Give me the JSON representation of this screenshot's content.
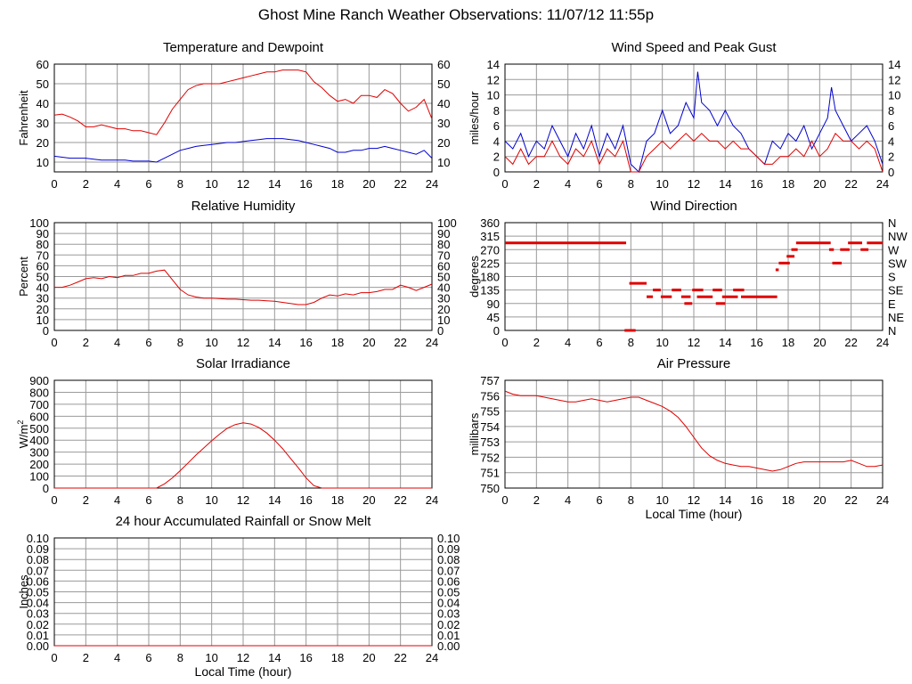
{
  "page": {
    "title": "Ghost Mine Ranch Weather Observations: 11/07/12 11:55p"
  },
  "chart_data": [
    {
      "id": "temp",
      "type": "line",
      "title": "Temperature and Dewpoint",
      "ylabel": "Fahrenheit",
      "xlabel": "",
      "xlim": [
        0,
        24
      ],
      "ylim": [
        5,
        60
      ],
      "xticks": [
        0,
        2,
        4,
        6,
        8,
        10,
        12,
        14,
        16,
        18,
        20,
        22,
        24
      ],
      "yticks": [
        10,
        20,
        30,
        40,
        50,
        60
      ],
      "right_axis": true,
      "grid": true,
      "series": [
        {
          "color": "#e00000",
          "x": [
            0,
            0.5,
            1,
            1.5,
            2,
            2.5,
            3,
            3.5,
            4,
            4.5,
            5,
            5.5,
            6,
            6.5,
            7,
            7.5,
            8,
            8.5,
            9,
            9.5,
            10,
            10.5,
            11,
            11.5,
            12,
            12.5,
            13,
            13.5,
            14,
            14.5,
            15,
            15.5,
            16,
            16.5,
            17,
            17.5,
            18,
            18.5,
            19,
            19.5,
            20,
            20.5,
            21,
            21.5,
            22,
            22.5,
            23,
            23.5,
            24
          ],
          "values": [
            34,
            34.5,
            33,
            31,
            28,
            28,
            29,
            28,
            27,
            27,
            26,
            26,
            25,
            24,
            30,
            37,
            42,
            47,
            49,
            50,
            50,
            50,
            51,
            52,
            53,
            54,
            55,
            56,
            56,
            57,
            57,
            57,
            56,
            51,
            48,
            44,
            41,
            42,
            40,
            44,
            44,
            43,
            47,
            45,
            40,
            36,
            38,
            42,
            32
          ]
        },
        {
          "color": "#0000d0",
          "x": [
            0,
            0.5,
            1,
            1.5,
            2,
            2.5,
            3,
            3.5,
            4,
            4.5,
            5,
            5.5,
            6,
            6.5,
            7,
            7.5,
            8,
            8.5,
            9,
            9.5,
            10,
            10.5,
            11,
            11.5,
            12,
            12.5,
            13,
            13.5,
            14,
            14.5,
            15,
            15.5,
            16,
            16.5,
            17,
            17.5,
            18,
            18.5,
            19,
            19.5,
            20,
            20.5,
            21,
            21.5,
            22,
            22.5,
            23,
            23.5,
            24
          ],
          "values": [
            13,
            12.5,
            12,
            12,
            12,
            11.5,
            11,
            11,
            11,
            11,
            10.5,
            10.5,
            10.5,
            10,
            12,
            14,
            16,
            17,
            18,
            18.5,
            19,
            19.5,
            20,
            20,
            20.5,
            21,
            21.5,
            22,
            22,
            22,
            21.5,
            21,
            20,
            19,
            18,
            17,
            15,
            15,
            16,
            16,
            17,
            17,
            18,
            17,
            16,
            15,
            14,
            16,
            12
          ]
        }
      ]
    },
    {
      "id": "wind",
      "type": "line",
      "title": "Wind Speed and Peak Gust",
      "ylabel": "miles/hour",
      "xlabel": "",
      "xlim": [
        0,
        24
      ],
      "ylim": [
        0,
        14
      ],
      "xticks": [
        0,
        2,
        4,
        6,
        8,
        10,
        12,
        14,
        16,
        18,
        20,
        22,
        24
      ],
      "yticks": [
        0,
        2,
        4,
        6,
        8,
        10,
        12,
        14
      ],
      "right_axis": true,
      "grid": true,
      "series": [
        {
          "color": "#0000d0",
          "x": [
            0,
            0.5,
            1,
            1.5,
            2,
            2.5,
            3,
            3.5,
            4,
            4.5,
            5,
            5.5,
            6,
            6.5,
            7,
            7.5,
            8,
            8.5,
            9,
            9.5,
            10,
            10.5,
            11,
            11.5,
            12,
            12.25,
            12.5,
            13,
            13.5,
            14,
            14.5,
            15,
            15.5,
            16,
            16.5,
            17,
            17.5,
            18,
            18.5,
            19,
            19.5,
            20,
            20.5,
            20.75,
            21,
            21.5,
            22,
            22.5,
            23,
            23.5,
            24
          ],
          "values": [
            4,
            3,
            5,
            2,
            4,
            3,
            6,
            4,
            2,
            5,
            3,
            6,
            2,
            5,
            3,
            6,
            1,
            0,
            4,
            5,
            8,
            5,
            6,
            9,
            7,
            13,
            9,
            8,
            6,
            8,
            6,
            5,
            3,
            2,
            1,
            4,
            3,
            5,
            4,
            6,
            3,
            5,
            7,
            11,
            8,
            6,
            4,
            5,
            6,
            4,
            1
          ]
        },
        {
          "color": "#e00000",
          "x": [
            0,
            0.5,
            1,
            1.5,
            2,
            2.5,
            3,
            3.5,
            4,
            4.5,
            5,
            5.5,
            6,
            6.5,
            7,
            7.5,
            8,
            8.5,
            9,
            9.5,
            10,
            10.5,
            11,
            11.5,
            12,
            12.5,
            13,
            13.5,
            14,
            14.5,
            15,
            15.5,
            16,
            16.5,
            17,
            17.5,
            18,
            18.5,
            19,
            19.5,
            20,
            20.5,
            21,
            21.5,
            22,
            22.5,
            23,
            23.5,
            24
          ],
          "values": [
            2,
            1,
            3,
            1,
            2,
            2,
            4,
            2,
            1,
            3,
            2,
            4,
            1,
            3,
            2,
            4,
            0,
            0,
            2,
            3,
            4,
            3,
            4,
            5,
            4,
            5,
            4,
            4,
            3,
            4,
            3,
            3,
            2,
            1,
            1,
            2,
            2,
            3,
            2,
            4,
            2,
            3,
            5,
            4,
            4,
            3,
            4,
            3,
            0
          ]
        }
      ]
    },
    {
      "id": "humidity",
      "type": "line",
      "title": "Relative Humidity",
      "ylabel": "Percent",
      "xlabel": "",
      "xlim": [
        0,
        24
      ],
      "ylim": [
        0,
        100
      ],
      "xticks": [
        0,
        2,
        4,
        6,
        8,
        10,
        12,
        14,
        16,
        18,
        20,
        22,
        24
      ],
      "yticks": [
        0,
        10,
        20,
        30,
        40,
        50,
        60,
        70,
        80,
        90,
        100
      ],
      "right_axis": true,
      "grid": true,
      "series": [
        {
          "color": "#e00000",
          "x": [
            0,
            0.5,
            1,
            1.5,
            2,
            2.5,
            3,
            3.5,
            4,
            4.5,
            5,
            5.5,
            6,
            6.5,
            7,
            7.5,
            8,
            8.5,
            9,
            9.5,
            10,
            10.5,
            11,
            11.5,
            12,
            12.5,
            13,
            13.5,
            14,
            14.5,
            15,
            15.5,
            16,
            16.5,
            17,
            17.5,
            18,
            18.5,
            19,
            19.5,
            20,
            20.5,
            21,
            21.5,
            22,
            22.5,
            23,
            23.5,
            24
          ],
          "values": [
            40,
            40,
            42,
            45,
            48,
            49,
            48,
            50,
            49,
            51,
            51,
            53,
            53,
            55,
            56,
            47,
            38,
            33,
            31,
            30,
            30,
            29.5,
            29,
            29,
            28.5,
            28,
            28,
            27.5,
            27,
            26,
            25,
            24,
            24,
            26,
            30,
            33,
            32,
            34,
            33,
            35,
            35,
            36,
            38,
            38,
            42,
            40,
            37,
            40,
            43
          ]
        }
      ]
    },
    {
      "id": "winddir",
      "type": "scatter",
      "title": "Wind Direction",
      "ylabel": "degrees",
      "xlabel": "",
      "xlim": [
        0,
        24
      ],
      "ylim": [
        0,
        360
      ],
      "xticks": [
        0,
        2,
        4,
        6,
        8,
        10,
        12,
        14,
        16,
        18,
        20,
        22,
        24
      ],
      "yticks": [
        0,
        45,
        90,
        135,
        180,
        225,
        270,
        315,
        360
      ],
      "right_labels": [
        "N",
        "NE",
        "E",
        "SE",
        "S",
        "SW",
        "W",
        "NW",
        "N"
      ],
      "grid": true,
      "segments": [
        {
          "color": "#e00000",
          "from": 0.0,
          "to": 7.7,
          "y": 292.5
        },
        {
          "color": "#e00000",
          "from": 7.6,
          "to": 8.3,
          "y": 0
        },
        {
          "color": "#e00000",
          "from": 7.9,
          "to": 9.0,
          "y": 157.5
        },
        {
          "color": "#e00000",
          "from": 9.0,
          "to": 9.4,
          "y": 112.5
        },
        {
          "color": "#e00000",
          "from": 9.4,
          "to": 9.9,
          "y": 135
        },
        {
          "color": "#e00000",
          "from": 9.9,
          "to": 10.6,
          "y": 112.5
        },
        {
          "color": "#e00000",
          "from": 10.6,
          "to": 11.2,
          "y": 135
        },
        {
          "color": "#e00000",
          "from": 11.2,
          "to": 11.8,
          "y": 112.5
        },
        {
          "color": "#e00000",
          "from": 11.4,
          "to": 11.9,
          "y": 90
        },
        {
          "color": "#e00000",
          "from": 11.9,
          "to": 12.6,
          "y": 135
        },
        {
          "color": "#e00000",
          "from": 12.2,
          "to": 13.2,
          "y": 112.5
        },
        {
          "color": "#e00000",
          "from": 13.2,
          "to": 13.8,
          "y": 135
        },
        {
          "color": "#e00000",
          "from": 13.4,
          "to": 14.0,
          "y": 90
        },
        {
          "color": "#e00000",
          "from": 13.8,
          "to": 14.8,
          "y": 112.5
        },
        {
          "color": "#e00000",
          "from": 14.5,
          "to": 15.2,
          "y": 135
        },
        {
          "color": "#e00000",
          "from": 15.0,
          "to": 17.3,
          "y": 112.5
        },
        {
          "color": "#e00000",
          "from": 17.2,
          "to": 17.4,
          "y": 202.5
        },
        {
          "color": "#e00000",
          "from": 17.4,
          "to": 18.1,
          "y": 225
        },
        {
          "color": "#e00000",
          "from": 17.9,
          "to": 18.4,
          "y": 247.5
        },
        {
          "color": "#e00000",
          "from": 18.2,
          "to": 18.6,
          "y": 270
        },
        {
          "color": "#e00000",
          "from": 18.5,
          "to": 20.7,
          "y": 292.5
        },
        {
          "color": "#e00000",
          "from": 20.6,
          "to": 20.9,
          "y": 270
        },
        {
          "color": "#e00000",
          "from": 20.8,
          "to": 21.4,
          "y": 225
        },
        {
          "color": "#e00000",
          "from": 21.3,
          "to": 21.9,
          "y": 270
        },
        {
          "color": "#e00000",
          "from": 21.8,
          "to": 22.7,
          "y": 292.5
        },
        {
          "color": "#e00000",
          "from": 22.6,
          "to": 23.1,
          "y": 270
        },
        {
          "color": "#e00000",
          "from": 23.0,
          "to": 24.0,
          "y": 292.5
        }
      ]
    },
    {
      "id": "solar",
      "type": "line",
      "title": "Solar Irradiance",
      "ylabel": "W/m",
      "ylabel_sup": "2",
      "xlabel": "",
      "xlim": [
        0,
        24
      ],
      "ylim": [
        0,
        900
      ],
      "xticks": [
        0,
        2,
        4,
        6,
        8,
        10,
        12,
        14,
        16,
        18,
        20,
        22,
        24
      ],
      "yticks": [
        0,
        100,
        200,
        300,
        400,
        500,
        600,
        700,
        800,
        900
      ],
      "right_axis": false,
      "grid": true,
      "series": [
        {
          "color": "#e00000",
          "x": [
            0,
            6.5,
            7,
            7.5,
            8,
            8.5,
            9,
            9.5,
            10,
            10.5,
            11,
            11.5,
            12,
            12.5,
            13,
            13.5,
            14,
            14.5,
            15,
            15.5,
            16,
            16.5,
            17,
            24
          ],
          "values": [
            0,
            0,
            35,
            85,
            145,
            210,
            275,
            335,
            395,
            450,
            500,
            530,
            545,
            535,
            505,
            460,
            400,
            330,
            250,
            170,
            85,
            20,
            0,
            0
          ]
        }
      ]
    },
    {
      "id": "pressure",
      "type": "line",
      "title": "Air Pressure",
      "ylabel": "millibars",
      "xlabel": "Local Time (hour)",
      "xlim": [
        0,
        24
      ],
      "ylim": [
        750,
        757
      ],
      "xticks": [
        0,
        2,
        4,
        6,
        8,
        10,
        12,
        14,
        16,
        18,
        20,
        22,
        24
      ],
      "yticks": [
        750,
        751,
        752,
        753,
        754,
        755,
        756,
        757
      ],
      "right_axis": false,
      "grid": true,
      "series": [
        {
          "color": "#e00000",
          "x": [
            0,
            0.5,
            1,
            1.5,
            2,
            2.5,
            3,
            3.5,
            4,
            4.5,
            5,
            5.5,
            6,
            6.5,
            7,
            7.5,
            8,
            8.5,
            9,
            9.5,
            10,
            10.5,
            11,
            11.5,
            12,
            12.5,
            13,
            13.5,
            14,
            14.5,
            15,
            15.5,
            16,
            16.5,
            17,
            17.5,
            18,
            18.5,
            19,
            19.5,
            20,
            20.5,
            21,
            21.5,
            22,
            22.5,
            23,
            23.5,
            24
          ],
          "values": [
            756.3,
            756.1,
            756.0,
            756.0,
            756.0,
            755.9,
            755.8,
            755.7,
            755.6,
            755.6,
            755.7,
            755.8,
            755.7,
            755.6,
            755.7,
            755.8,
            755.9,
            755.9,
            755.7,
            755.5,
            755.3,
            755.0,
            754.6,
            754.0,
            753.3,
            752.6,
            752.1,
            751.8,
            751.6,
            751.5,
            751.4,
            751.4,
            751.3,
            751.2,
            751.1,
            751.2,
            751.4,
            751.6,
            751.7,
            751.7,
            751.7,
            751.7,
            751.7,
            751.7,
            751.8,
            751.6,
            751.4,
            751.4,
            751.5
          ]
        }
      ]
    },
    {
      "id": "rain",
      "type": "line",
      "title": "24 hour Accumulated Rainfall or Snow Melt",
      "ylabel": "Inches",
      "xlabel": "Local Time (hour)",
      "xlim": [
        0,
        24
      ],
      "ylim": [
        0,
        0.1
      ],
      "xticks": [
        0,
        2,
        4,
        6,
        8,
        10,
        12,
        14,
        16,
        18,
        20,
        22,
        24
      ],
      "yticks": [
        "0.00",
        "0.01",
        "0.02",
        "0.03",
        "0.04",
        "0.05",
        "0.06",
        "0.07",
        "0.08",
        "0.09",
        "0.10"
      ],
      "right_axis": true,
      "grid": true,
      "series": [
        {
          "color": "#e00000",
          "x": [
            0,
            24
          ],
          "values": [
            0,
            0
          ]
        }
      ]
    }
  ]
}
